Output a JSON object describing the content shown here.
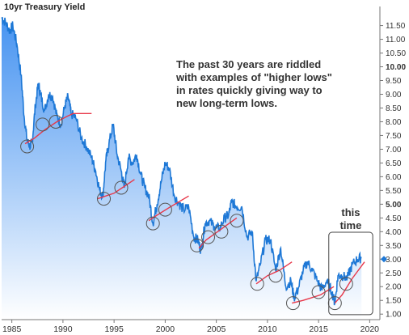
{
  "chart_data": {
    "type": "area",
    "title": "10yr Treasury Yield",
    "x_ticks": [
      1985,
      1990,
      1995,
      2000,
      2005,
      2010,
      2015,
      2020
    ],
    "y_ticks": [
      "1.00",
      "1.50",
      "2.00",
      "2.50",
      "3.00",
      "3.50",
      "4.00",
      "4.50",
      "5.00",
      "5.50",
      "6.00",
      "6.50",
      "7.00",
      "7.50",
      "8.00",
      "8.50",
      "9.00",
      "9.50",
      "10.00",
      "10.50",
      "11.00",
      "11.50"
    ],
    "y_bold_ticks": [
      "5.00",
      "10.00"
    ],
    "xlim": [
      1984,
      2021
    ],
    "ylim": [
      0.8,
      11.9
    ],
    "current_value": "3.00",
    "series": [
      {
        "x": [
          1984.0,
          1984.4,
          1984.8,
          1985.1,
          1985.5,
          1985.9,
          1986.2,
          1986.5,
          1986.8,
          1987.0,
          1987.3,
          1987.6,
          1987.8,
          1988.2,
          1988.6,
          1989.0,
          1989.4,
          1989.8,
          1990.2,
          1990.5,
          1990.8,
          1991.3,
          1991.8,
          1992.3,
          1992.8,
          1993.2,
          1993.6,
          1993.9,
          1994.2,
          1994.5,
          1994.9,
          1995.3,
          1995.7,
          1996.0,
          1996.4,
          1996.8,
          1997.2,
          1997.6,
          1998.0,
          1998.4,
          1998.8,
          1999.2,
          1999.6,
          2000.0,
          2000.4,
          2000.9,
          2001.4,
          2001.8,
          2002.3,
          2002.8,
          2003.2,
          2003.5,
          2003.9,
          2004.3,
          2004.8,
          2005.3,
          2005.8,
          2006.2,
          2006.5,
          2007.0,
          2007.5,
          2008.0,
          2008.5,
          2008.9,
          2009.3,
          2009.8,
          2010.3,
          2010.8,
          2011.3,
          2011.8,
          2012.3,
          2012.6,
          2013.0,
          2013.5,
          2013.9,
          2014.4,
          2014.9,
          2015.3,
          2015.8,
          2016.3,
          2016.6,
          2016.9,
          2017.3,
          2017.8,
          2018.3,
          2018.8,
          2019.2
        ],
        "values": [
          11.8,
          11.6,
          11.3,
          11.5,
          10.8,
          9.7,
          8.2,
          7.3,
          7.1,
          7.3,
          8.6,
          9.4,
          9.0,
          8.4,
          9.0,
          8.9,
          8.2,
          7.9,
          8.6,
          8.9,
          8.3,
          8.1,
          7.4,
          7.1,
          6.7,
          6.2,
          5.5,
          5.3,
          6.6,
          7.2,
          7.9,
          6.8,
          6.2,
          5.6,
          6.7,
          6.5,
          6.8,
          6.1,
          5.6,
          5.3,
          4.3,
          5.0,
          5.8,
          6.5,
          6.3,
          5.3,
          5.0,
          4.8,
          4.9,
          3.8,
          3.7,
          3.3,
          4.3,
          4.4,
          4.2,
          4.1,
          4.5,
          4.6,
          5.1,
          4.9,
          4.9,
          3.8,
          4.0,
          2.2,
          2.8,
          3.7,
          3.7,
          2.6,
          3.4,
          2.0,
          2.2,
          1.6,
          1.9,
          2.6,
          2.9,
          2.6,
          2.2,
          1.9,
          2.2,
          1.8,
          1.4,
          2.4,
          2.4,
          2.3,
          2.8,
          3.0,
          3.05
        ]
      }
    ],
    "trend_lines": [
      {
        "x": [
          1986.3,
          1987.2,
          1988.2,
          1989.4,
          1990.4,
          1991.0,
          1992.8
        ],
        "y": [
          7.2,
          7.4,
          7.7,
          8.0,
          8.2,
          8.3,
          8.3
        ]
      },
      {
        "x": [
          1993.4,
          1995.0,
          1995.8,
          1997.0
        ],
        "y": [
          5.2,
          5.4,
          5.6,
          5.9
        ]
      },
      {
        "x": [
          1998.4,
          1999.2,
          2000.5,
          2002.3
        ],
        "y": [
          4.4,
          4.6,
          4.9,
          5.3
        ]
      },
      {
        "x": [
          2003.3,
          2004.0,
          2005.5,
          2007.0
        ],
        "y": [
          3.4,
          3.7,
          4.1,
          4.5
        ]
      },
      {
        "x": [
          2008.9,
          2010.0,
          2011.2,
          2012.4
        ],
        "y": [
          2.1,
          2.4,
          2.6,
          2.9
        ]
      },
      {
        "x": [
          2012.4,
          2013.5,
          2015.2,
          2016.5
        ],
        "y": [
          1.4,
          1.5,
          1.7,
          2.0
        ]
      },
      {
        "x": [
          2016.6,
          2017.3,
          2018.3,
          2019.5
        ],
        "y": [
          1.4,
          1.7,
          2.3,
          2.9
        ]
      }
    ],
    "circled_lows": [
      {
        "x": 1986.5,
        "y": 7.1
      },
      {
        "x": 1988.0,
        "y": 7.9
      },
      {
        "x": 1989.3,
        "y": 8.0
      },
      {
        "x": 1994.0,
        "y": 5.2
      },
      {
        "x": 1995.7,
        "y": 5.6
      },
      {
        "x": 1998.8,
        "y": 4.3
      },
      {
        "x": 2000.0,
        "y": 4.8
      },
      {
        "x": 2003.1,
        "y": 3.5
      },
      {
        "x": 2004.2,
        "y": 3.8
      },
      {
        "x": 2005.5,
        "y": 4.0
      },
      {
        "x": 2007.0,
        "y": 4.4
      },
      {
        "x": 2009.0,
        "y": 2.1
      },
      {
        "x": 2010.8,
        "y": 2.4
      },
      {
        "x": 2012.5,
        "y": 1.4
      },
      {
        "x": 2015.0,
        "y": 1.8
      },
      {
        "x": 2016.6,
        "y": 1.4
      },
      {
        "x": 2017.7,
        "y": 2.1
      }
    ],
    "annotation": [
      "The past 30 years are riddled",
      "with examples of \"higher lows\"",
      "in rates quickly giving way to",
      "new long-term lows."
    ],
    "box_label": [
      "this",
      "time"
    ],
    "colors": {
      "line": "#1e78d6",
      "fill_top": "#3d8ef0",
      "fill_bottom": "#ffffff",
      "trend": "#e8384a",
      "circle": "#555555",
      "marker": "#1e78d6"
    },
    "grid": false
  }
}
